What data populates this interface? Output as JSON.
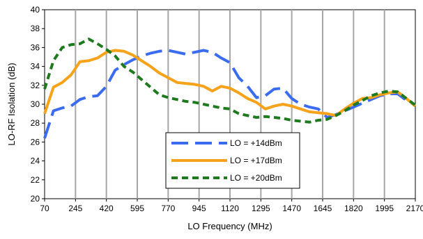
{
  "chart_data": {
    "type": "line",
    "xlabel": "LO Frequency (MHz)",
    "ylabel": "LO-RF Isolation (dB)",
    "xlim": [
      70,
      2170
    ],
    "ylim": [
      20,
      40
    ],
    "x_ticks": [
      70,
      245,
      420,
      595,
      770,
      945,
      1120,
      1295,
      1470,
      1645,
      1820,
      1995,
      2170
    ],
    "y_ticks": [
      20,
      22,
      24,
      26,
      28,
      30,
      32,
      34,
      36,
      38,
      40
    ],
    "grid": "vertical",
    "legend_position": "center-bottom",
    "series": [
      {
        "name": "LO = +14dBm",
        "color": "#3b6cf0",
        "dash": "long-dash",
        "x": [
          70,
          120,
          170,
          220,
          270,
          320,
          370,
          420,
          470,
          520,
          570,
          620,
          670,
          720,
          770,
          820,
          870,
          920,
          970,
          1020,
          1070,
          1120,
          1170,
          1220,
          1270,
          1320,
          1370,
          1420,
          1470,
          1520,
          1570,
          1620,
          1670,
          1720,
          1770,
          1820,
          1870,
          1920,
          1970,
          2020,
          2070,
          2120,
          2170
        ],
        "values": [
          26.4,
          29.3,
          29.6,
          29.8,
          30.5,
          30.8,
          30.9,
          31.9,
          33.6,
          34.2,
          34.7,
          35.1,
          35.4,
          35.6,
          35.7,
          35.5,
          35.3,
          35.5,
          35.7,
          35.5,
          34.9,
          34.4,
          32.8,
          31.9,
          30.7,
          30.9,
          31.6,
          31.7,
          30.6,
          30.0,
          29.7,
          29.5,
          28.6,
          28.9,
          29.3,
          29.7,
          30.1,
          30.5,
          30.9,
          31.1,
          31.1,
          30.4,
          29.9
        ]
      },
      {
        "name": "LO = +17dBm",
        "color": "#f7a21b",
        "dash": "solid",
        "x": [
          70,
          120,
          170,
          220,
          270,
          320,
          370,
          420,
          470,
          520,
          570,
          620,
          670,
          720,
          770,
          820,
          870,
          920,
          970,
          1020,
          1070,
          1120,
          1170,
          1220,
          1270,
          1320,
          1370,
          1420,
          1470,
          1520,
          1570,
          1620,
          1670,
          1720,
          1770,
          1820,
          1870,
          1920,
          1970,
          2020,
          2070,
          2120,
          2170
        ],
        "values": [
          29.0,
          31.8,
          32.3,
          33.1,
          34.5,
          34.6,
          34.9,
          35.5,
          35.7,
          35.6,
          35.2,
          34.6,
          34.0,
          33.3,
          32.8,
          32.3,
          32.2,
          32.1,
          31.9,
          31.4,
          31.9,
          31.7,
          31.2,
          30.6,
          30.2,
          29.5,
          29.8,
          30.0,
          29.8,
          29.5,
          29.2,
          29.1,
          29.0,
          28.8,
          29.5,
          30.1,
          30.6,
          30.7,
          31.0,
          31.2,
          31.3,
          30.6,
          29.8
        ]
      },
      {
        "name": "LO = +20dBm",
        "color": "#1f7a1f",
        "dash": "short-dash",
        "x": [
          70,
          120,
          170,
          220,
          270,
          320,
          370,
          420,
          470,
          520,
          570,
          620,
          670,
          720,
          770,
          820,
          870,
          920,
          970,
          1020,
          1070,
          1120,
          1170,
          1220,
          1270,
          1320,
          1370,
          1420,
          1470,
          1520,
          1570,
          1620,
          1670,
          1720,
          1770,
          1820,
          1870,
          1920,
          1970,
          2020,
          2070,
          2120,
          2170
        ],
        "values": [
          31.6,
          34.6,
          36.0,
          36.3,
          36.4,
          36.9,
          36.4,
          35.8,
          35.1,
          34.0,
          33.4,
          32.6,
          31.8,
          31.0,
          30.7,
          30.5,
          30.3,
          30.2,
          30.0,
          29.8,
          29.6,
          29.5,
          29.0,
          28.8,
          28.6,
          28.7,
          28.6,
          28.5,
          28.3,
          28.2,
          28.1,
          28.3,
          28.4,
          28.8,
          29.3,
          29.9,
          30.4,
          30.9,
          31.2,
          31.4,
          31.3,
          30.6,
          29.9
        ]
      }
    ]
  }
}
